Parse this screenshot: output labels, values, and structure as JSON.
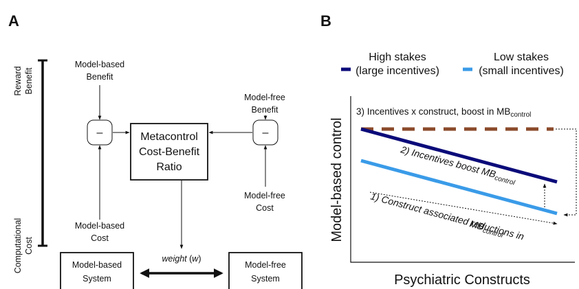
{
  "panel_a": {
    "label": "A",
    "axis_top": [
      "Reward",
      "Benefit"
    ],
    "axis_bottom": [
      "Computational",
      "Cost"
    ],
    "mb_benefit": [
      "Model-based",
      "Benefit"
    ],
    "mb_cost": [
      "Model-based",
      "Cost"
    ],
    "mf_benefit": [
      "Model-free",
      "Benefit"
    ],
    "mf_cost": [
      "Model-free",
      "Cost"
    ],
    "minus": "–",
    "center": [
      "Metacontrol",
      "Cost-Benefit",
      "Ratio"
    ],
    "weight": {
      "word": "weight",
      "open": " (",
      "symbol": "w",
      "close": ")"
    },
    "mb_system": [
      "Model-based",
      "System"
    ],
    "mf_system": [
      "Model-free",
      "System"
    ]
  },
  "panel_b": {
    "label": "B",
    "legend": [
      {
        "name": [
          "High stakes",
          "(large incentives)"
        ],
        "color": "#0b0b7a"
      },
      {
        "name": [
          "Low stakes",
          "(small incentives)"
        ],
        "color": "#3a9be8"
      }
    ],
    "y_label": "Model-based control",
    "x_label": "Psychiatric Constructs",
    "note3": {
      "text": "3) Incentives x construct, boost in MB",
      "sub": "control"
    },
    "note2": {
      "text": "2) Incentives boost MB",
      "sub": "control"
    },
    "note1": {
      "text": "1) Construct associated reductions in",
      "text2": "MB",
      "sub": "control"
    },
    "interaction_color": "#8b4a2b"
  }
}
